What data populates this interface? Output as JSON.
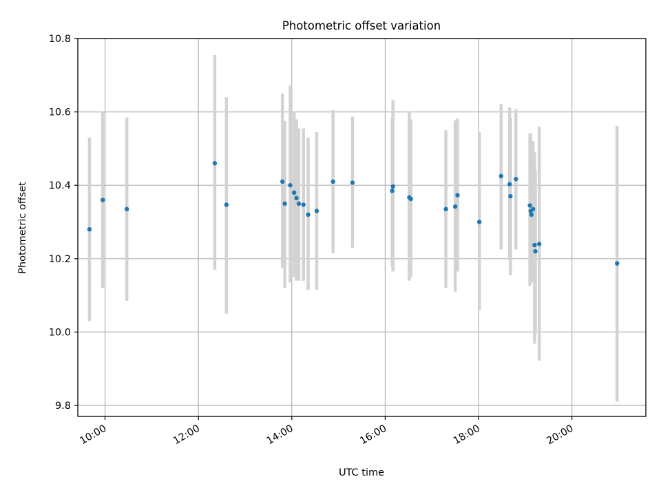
{
  "chart_data": {
    "type": "scatter",
    "title": "Photometric offset variation",
    "xlabel": "UTC time",
    "ylabel": "Photometric offset",
    "xlim": [
      "09:25",
      "21:35"
    ],
    "ylim": [
      9.77,
      10.8
    ],
    "xticks": [
      "10:00",
      "12:00",
      "14:00",
      "16:00",
      "18:00",
      "20:00"
    ],
    "yticks": [
      9.8,
      10.0,
      10.2,
      10.4,
      10.6,
      10.8
    ],
    "ytick_labels": [
      "9.8",
      "10.0",
      "10.2",
      "10.4",
      "10.6",
      "10.8"
    ],
    "grid": true,
    "marker_color": "#1f77b4",
    "errorbar_color": "#d3d3d3",
    "series": [
      {
        "points": [
          {
            "x": "09:40",
            "y": 10.28,
            "ylow": 10.03,
            "yhigh": 10.53
          },
          {
            "x": "09:57",
            "y": 10.36,
            "ylow": 10.12,
            "yhigh": 10.6
          },
          {
            "x": "10:28",
            "y": 10.335,
            "ylow": 10.085,
            "yhigh": 10.585
          },
          {
            "x": "12:21",
            "y": 10.46,
            "ylow": 10.17,
            "yhigh": 10.755
          },
          {
            "x": "12:36",
            "y": 10.347,
            "ylow": 10.05,
            "yhigh": 10.64
          },
          {
            "x": "13:48",
            "y": 10.41,
            "ylow": 10.175,
            "yhigh": 10.65
          },
          {
            "x": "13:51",
            "y": 10.35,
            "ylow": 10.12,
            "yhigh": 10.575
          },
          {
            "x": "13:58",
            "y": 10.4,
            "ylow": 10.135,
            "yhigh": 10.672
          },
          {
            "x": "14:03",
            "y": 10.38,
            "ylow": 10.15,
            "yhigh": 10.6
          },
          {
            "x": "14:06",
            "y": 10.365,
            "ylow": 10.14,
            "yhigh": 10.58
          },
          {
            "x": "14:09",
            "y": 10.35,
            "ylow": 10.14,
            "yhigh": 10.555
          },
          {
            "x": "14:15",
            "y": 10.347,
            "ylow": 10.14,
            "yhigh": 10.555
          },
          {
            "x": "14:21",
            "y": 10.32,
            "ylow": 10.115,
            "yhigh": 10.53
          },
          {
            "x": "14:32",
            "y": 10.33,
            "ylow": 10.115,
            "yhigh": 10.545
          },
          {
            "x": "14:53",
            "y": 10.41,
            "ylow": 10.215,
            "yhigh": 10.605
          },
          {
            "x": "15:18",
            "y": 10.407,
            "ylow": 10.23,
            "yhigh": 10.587
          },
          {
            "x": "16:09",
            "y": 10.385,
            "ylow": 10.18,
            "yhigh": 10.585
          },
          {
            "x": "16:10",
            "y": 10.397,
            "ylow": 10.165,
            "yhigh": 10.632
          },
          {
            "x": "16:31",
            "y": 10.367,
            "ylow": 10.14,
            "yhigh": 10.6
          },
          {
            "x": "16:33",
            "y": 10.363,
            "ylow": 10.15,
            "yhigh": 10.58
          },
          {
            "x": "17:18",
            "y": 10.335,
            "ylow": 10.12,
            "yhigh": 10.55
          },
          {
            "x": "17:30",
            "y": 10.342,
            "ylow": 10.11,
            "yhigh": 10.577
          },
          {
            "x": "17:33",
            "y": 10.373,
            "ylow": 10.165,
            "yhigh": 10.582
          },
          {
            "x": "18:01",
            "y": 10.3,
            "ylow": 10.06,
            "yhigh": 10.545
          },
          {
            "x": "18:29",
            "y": 10.425,
            "ylow": 10.225,
            "yhigh": 10.622
          },
          {
            "x": "18:40",
            "y": 10.403,
            "ylow": 10.195,
            "yhigh": 10.612
          },
          {
            "x": "18:41",
            "y": 10.37,
            "ylow": 10.155,
            "yhigh": 10.585
          },
          {
            "x": "18:48",
            "y": 10.417,
            "ylow": 10.225,
            "yhigh": 10.607
          },
          {
            "x": "19:06",
            "y": 10.345,
            "ylow": 10.125,
            "yhigh": 10.542
          },
          {
            "x": "19:07",
            "y": 10.33,
            "ylow": 10.135,
            "yhigh": 10.54
          },
          {
            "x": "19:08",
            "y": 10.32,
            "ylow": 10.135,
            "yhigh": 10.51
          },
          {
            "x": "19:10",
            "y": 10.335,
            "ylow": 10.14,
            "yhigh": 10.52
          },
          {
            "x": "19:12",
            "y": 10.237,
            "ylow": 9.968,
            "yhigh": 10.49
          },
          {
            "x": "19:13",
            "y": 10.22,
            "ylow": 10.0,
            "yhigh": 10.44
          },
          {
            "x": "19:18",
            "y": 10.24,
            "ylow": 9.922,
            "yhigh": 10.56
          },
          {
            "x": "20:58",
            "y": 10.187,
            "ylow": 9.81,
            "yhigh": 10.562
          }
        ]
      }
    ]
  }
}
